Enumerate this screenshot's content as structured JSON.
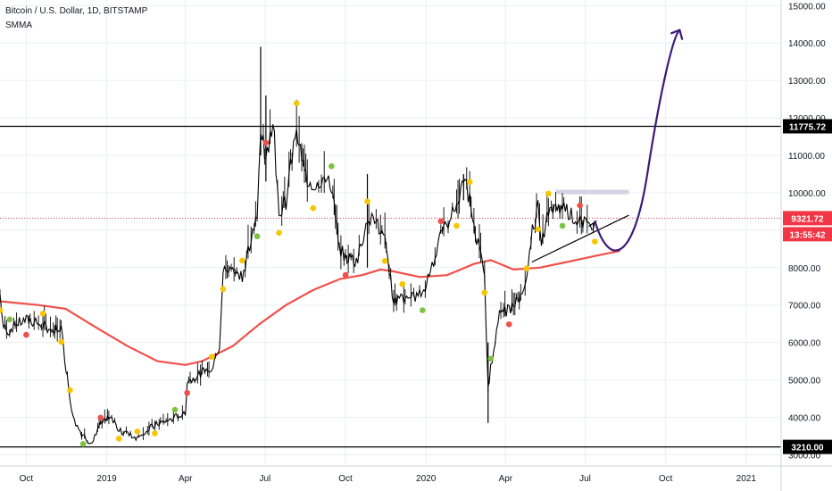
{
  "header": {
    "symbol_title": "Bitcoin / U.S. Dollar, 1D, BITSTAMP",
    "indicator_name": "SMMA"
  },
  "colors": {
    "background": "#ffffff",
    "grid": "#eceff3",
    "price_line": "#000000",
    "smma": "#f0504a",
    "projection": "#3c1a78",
    "current_price": "#f23645",
    "marker_yellow": "#f7c600",
    "marker_green": "#7cc343",
    "marker_red": "#f0504a",
    "zone": "#d3d4e3"
  },
  "chart_data": {
    "type": "line",
    "title": "Bitcoin / U.S. Dollar, 1D, BITSTAMP",
    "x_tick_labels": [
      "Oct",
      "2019",
      "Apr",
      "Jul",
      "Oct",
      "2020",
      "Apr",
      "Jul",
      "Oct",
      "2021"
    ],
    "y_tick_labels": [
      "3000.00",
      "4000.00",
      "5000.00",
      "6000.00",
      "7000.00",
      "8000.00",
      "9000.00",
      "10000.00",
      "11000.00",
      "12000.00",
      "13000.00",
      "14000.00",
      "15000.00"
    ],
    "ylim": [
      2700,
      15150
    ],
    "xlim": [
      "2018-09-01",
      "2021-02-10"
    ],
    "grid": true,
    "series": [
      {
        "x": [
          "2018-09-01",
          "2018-09-05",
          "2018-09-12",
          "2018-09-20",
          "2018-10-01",
          "2018-10-10",
          "2018-10-20",
          "2018-11-01",
          "2018-11-10",
          "2018-11-14",
          "2018-11-20",
          "2018-11-25",
          "2018-12-05",
          "2018-12-15",
          "2018-12-25",
          "2019-01-05",
          "2019-01-15",
          "2019-01-25",
          "2019-02-05",
          "2019-02-15",
          "2019-02-25",
          "2019-03-10",
          "2019-03-20",
          "2019-04-01",
          "2019-04-03",
          "2019-04-20",
          "2019-05-01",
          "2019-05-10",
          "2019-05-14",
          "2019-05-25",
          "2019-06-05",
          "2019-06-15",
          "2019-06-22",
          "2019-06-26",
          "2019-07-02",
          "2019-07-10",
          "2019-07-17",
          "2019-07-25",
          "2019-08-06",
          "2019-08-15",
          "2019-08-25",
          "2019-09-05",
          "2019-09-15",
          "2019-09-24",
          "2019-10-01",
          "2019-10-15",
          "2019-10-26",
          "2019-11-05",
          "2019-11-15",
          "2019-11-25",
          "2019-12-05",
          "2019-12-18",
          "2019-12-28",
          "2020-01-08",
          "2020-01-18",
          "2020-01-28",
          "2020-02-05",
          "2020-02-13",
          "2020-02-20",
          "2020-02-28",
          "2020-03-08",
          "2020-03-12",
          "2020-03-15",
          "2020-03-25",
          "2020-04-05",
          "2020-04-15",
          "2020-04-25",
          "2020-04-30",
          "2020-05-08",
          "2020-05-12",
          "2020-05-20",
          "2020-05-30",
          "2020-06-05",
          "2020-06-15",
          "2020-06-25",
          "2020-07-05",
          "2020-07-12"
        ],
        "values": [
          7300,
          6400,
          6300,
          6500,
          6600,
          6550,
          6450,
          6350,
          6400,
          5600,
          4500,
          3900,
          3500,
          3300,
          3800,
          4000,
          3650,
          3550,
          3450,
          3650,
          3800,
          3900,
          4000,
          4150,
          4950,
          5200,
          5350,
          5900,
          7900,
          8000,
          7800,
          8700,
          9400,
          11800,
          10800,
          12000,
          9500,
          9800,
          11800,
          10500,
          10200,
          10400,
          10200,
          8500,
          8300,
          8200,
          9300,
          9200,
          8700,
          7100,
          7200,
          7200,
          7300,
          8100,
          8800,
          9300,
          9700,
          10400,
          9800,
          8800,
          7800,
          4800,
          5300,
          6700,
          6900,
          7100,
          7600,
          8800,
          9600,
          8600,
          9500,
          9500,
          9700,
          9400,
          9200,
          9100,
          9250
        ]
      },
      {
        "name": "SMMA",
        "x": [
          "2018-09-01",
          "2018-10-15",
          "2018-11-15",
          "2018-12-20",
          "2019-01-25",
          "2019-02-28",
          "2019-04-01",
          "2019-04-20",
          "2019-05-25",
          "2019-06-25",
          "2019-07-25",
          "2019-08-25",
          "2019-09-25",
          "2019-10-20",
          "2019-11-10",
          "2019-11-25",
          "2019-12-25",
          "2020-01-25",
          "2020-02-25",
          "2020-03-15",
          "2020-04-10",
          "2020-05-10",
          "2020-06-10",
          "2020-07-10",
          "2020-08-10"
        ],
        "values": [
          7100,
          7000,
          6900,
          6400,
          5900,
          5500,
          5400,
          5500,
          5900,
          6500,
          7000,
          7400,
          7700,
          7800,
          7950,
          7900,
          7750,
          7800,
          8100,
          8200,
          7950,
          8000,
          8150,
          8300,
          8450
        ]
      }
    ],
    "horizontal_levels": [
      11775.72,
      3210.0
    ],
    "price_label": "9321.72",
    "countdown_label": "13:55:42",
    "level_labels": [
      "11775.72",
      "3210.00"
    ]
  }
}
